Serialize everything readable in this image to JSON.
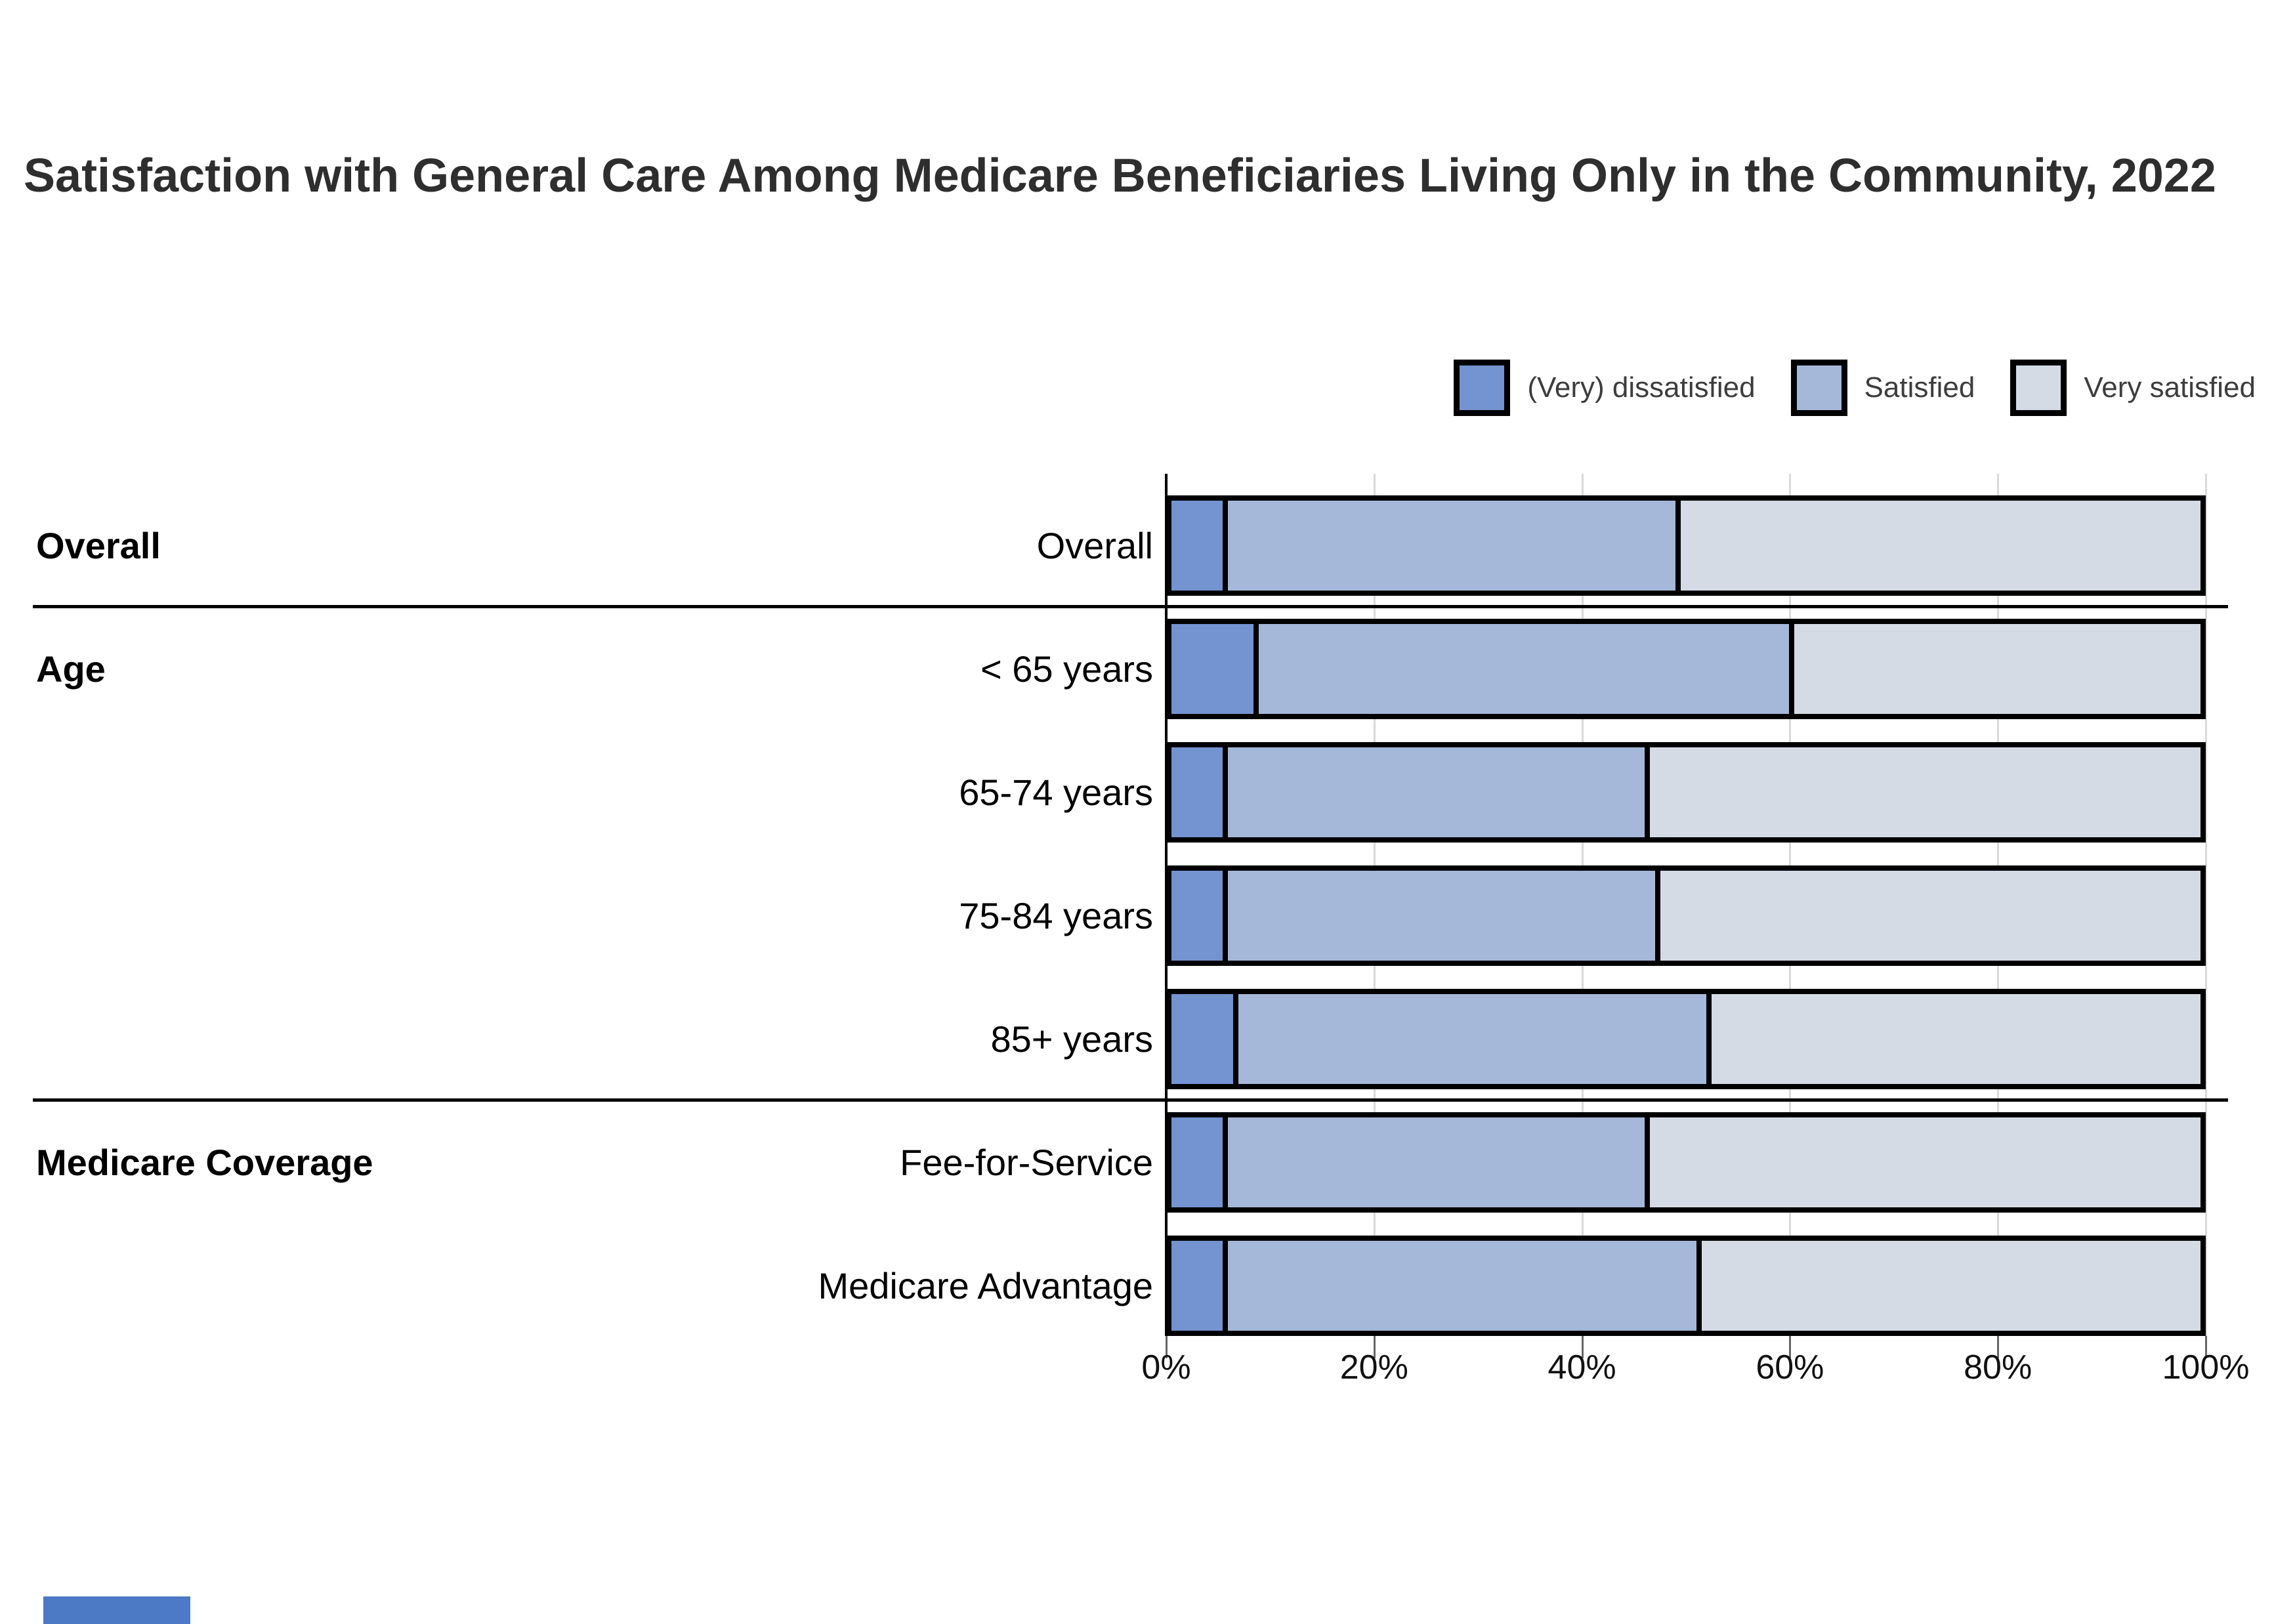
{
  "title": "Satisfaction with General Care Among Medicare Beneficiaries Living Only in the Community, 2022",
  "legend": [
    {
      "label": "(Very) dissatisfied",
      "color": "#7494d1"
    },
    {
      "label": "Satisfied",
      "color": "#a5b8da"
    },
    {
      "label": "Very satisfied",
      "color": "#d5dbe5"
    }
  ],
  "chart_data": {
    "type": "bar",
    "stacked": true,
    "orientation": "horizontal",
    "title": "Satisfaction with General Care Among Medicare Beneficiaries Living Only in the Community, 2022",
    "series_names": [
      "(Very) dissatisfied",
      "Satisfied",
      "Very satisfied"
    ],
    "colors": [
      "#7494d1",
      "#a5b8da",
      "#d5dbe5"
    ],
    "x_axis": {
      "min": 0,
      "max": 100,
      "ticks": [
        "0%",
        "20%",
        "40%",
        "60%",
        "80%",
        "100%"
      ],
      "gridlines": true
    },
    "sections": [
      {
        "label": "Overall",
        "rows": [
          {
            "label": "Overall",
            "values": [
              5,
              44,
              51
            ]
          }
        ]
      },
      {
        "label": "Age",
        "rows": [
          {
            "label": "< 65 years",
            "values": [
              8,
              52,
              40
            ]
          },
          {
            "label": "65-74 years",
            "values": [
              5,
              41,
              54
            ]
          },
          {
            "label": "75-84 years",
            "values": [
              5,
              42,
              53
            ]
          },
          {
            "label": "85+ years",
            "values": [
              6,
              46,
              48
            ]
          }
        ]
      },
      {
        "label": "Medicare Coverage",
        "rows": [
          {
            "label": "Fee-for-Service",
            "values": [
              5,
              41,
              54
            ]
          },
          {
            "label": "Medicare Advantage",
            "values": [
              5,
              46,
              49
            ]
          }
        ]
      }
    ]
  },
  "bottom_fragment": {
    "color": "#4c7ac4"
  }
}
